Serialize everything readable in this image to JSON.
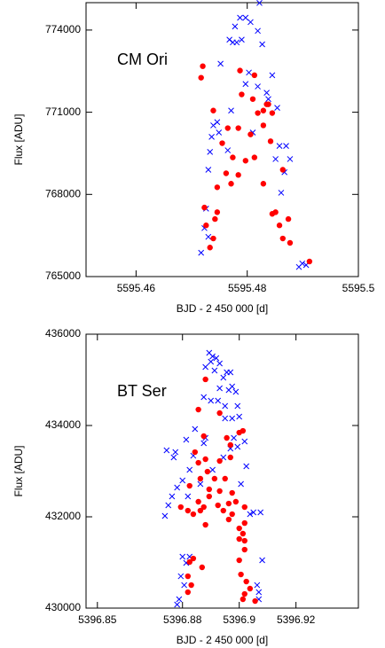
{
  "chart_data": [
    {
      "type": "scatter",
      "annotation": "CM Ori",
      "xlabel": "BJD - 2 450 000  [d]",
      "ylabel": "Flux [ADU]",
      "xlim": [
        5595.451,
        5595.5
      ],
      "xticks": [
        5595.46,
        5595.48,
        5595.5
      ],
      "ylim": [
        765000,
        775000
      ],
      "yticks": [
        765000,
        768000,
        771000,
        774000
      ],
      "series": [
        {
          "color": "#0000ff",
          "marker": "cross",
          "x": [
            5595.4822,
            5595.4787,
            5595.4797,
            5595.4806,
            5595.4778,
            5595.4819,
            5595.4768,
            5595.4774,
            5595.4781,
            5595.479,
            5595.4827,
            5595.4752,
            5595.4803,
            5595.4845,
            5595.4797,
            5595.4819,
            5595.4835,
            5595.4838,
            5595.4771,
            5595.4854,
            5595.4746,
            5595.4739,
            5595.4749,
            5595.4736,
            5595.481,
            5595.4765,
            5595.4858,
            5595.487,
            5595.4851,
            5595.4877,
            5595.4733,
            5595.473,
            5595.4867,
            5595.4861,
            5595.4726,
            5595.4723,
            5595.473,
            5595.4717,
            5595.4893,
            5595.4899,
            5595.4906
          ],
          "values": [
            774990,
            774450,
            774450,
            774290,
            774130,
            773970,
            773650,
            773550,
            773550,
            773650,
            773480,
            772770,
            772450,
            772350,
            772030,
            771940,
            771710,
            771480,
            771060,
            771160,
            770640,
            770520,
            770260,
            770100,
            770260,
            769610,
            769770,
            769770,
            769290,
            769290,
            769550,
            768900,
            768810,
            768060,
            767480,
            766770,
            766450,
            765870,
            765350,
            765480,
            765420
          ]
        },
        {
          "color": "#ff0000",
          "marker": "circle",
          "x": [
            5595.472,
            5595.4717,
            5595.4787,
            5595.4813,
            5595.479,
            5595.481,
            5595.4835,
            5595.4829,
            5595.4838,
            5595.4739,
            5595.4819,
            5595.4845,
            5595.4765,
            5595.4784,
            5595.4806,
            5595.4829,
            5595.4755,
            5595.4774,
            5595.4797,
            5595.4813,
            5595.4842,
            5595.4762,
            5595.4784,
            5595.4864,
            5595.4771,
            5595.4746,
            5595.4829,
            5595.4723,
            5595.4746,
            5595.4742,
            5595.4845,
            5595.4851,
            5595.4726,
            5595.4874,
            5595.4858,
            5595.4739,
            5595.4864,
            5595.4733,
            5595.4877,
            5595.4912
          ],
          "values": [
            772680,
            772260,
            772520,
            772350,
            771650,
            771480,
            771290,
            771060,
            771290,
            771060,
            770970,
            770970,
            770420,
            770420,
            770190,
            770520,
            769870,
            769350,
            769230,
            769350,
            769940,
            768770,
            768710,
            768900,
            768390,
            768260,
            768390,
            767520,
            767350,
            767100,
            767290,
            767350,
            766870,
            767100,
            766870,
            766390,
            766390,
            766060,
            766230,
            765550
          ]
        }
      ]
    },
    {
      "type": "scatter",
      "annotation": "BT Ser",
      "xlabel": "BJD - 2 450 000  [d]",
      "ylabel": "Flux [ADU]",
      "xlim": [
        5396.846,
        5396.942
      ],
      "xticks": [
        5396.85,
        5396.88,
        5396.9,
        5396.92
      ],
      "ylim": [
        430000,
        436000
      ],
      "yticks": [
        430000,
        432000,
        434000,
        436000
      ],
      "series": [
        {
          "color": "#0000ff",
          "marker": "cross",
          "x": [
            5396.8894,
            5396.8906,
            5396.89,
            5396.8919,
            5396.8931,
            5396.8881,
            5396.8913,
            5396.8956,
            5396.8944,
            5396.8969,
            5396.8975,
            5396.8931,
            5396.8963,
            5396.8988,
            5396.8875,
            5396.89,
            5396.8925,
            5396.895,
            5396.8994,
            5396.9,
            5396.895,
            5396.8975,
            5396.8844,
            5396.8813,
            5396.8881,
            5396.8981,
            5396.9019,
            5396.8994,
            5396.8969,
            5396.8744,
            5396.8775,
            5396.8875,
            5396.8838,
            5396.8769,
            5396.8944,
            5396.9025,
            5396.8825,
            5396.8906,
            5396.8863,
            5396.8763,
            5396.8781,
            5396.88,
            5396.8819,
            5396.875,
            5396.8738,
            5396.9006,
            5396.9038,
            5396.905,
            5396.9075,
            5396.8813,
            5396.88,
            5396.8825,
            5396.8794,
            5396.8806,
            5396.8788,
            5396.8781,
            5396.9081,
            5396.9063,
            5396.9069,
            5396.9069
          ],
          "values": [
            435592,
            435515,
            435398,
            435476,
            435359,
            435281,
            435204,
            435165,
            435048,
            435165,
            434854,
            434815,
            434777,
            434738,
            434621,
            434544,
            434544,
            434427,
            434427,
            434194,
            434155,
            434155,
            433922,
            433689,
            433728,
            433728,
            433650,
            433534,
            433495,
            433456,
            433417,
            433611,
            433339,
            433301,
            433301,
            433106,
            433029,
            433029,
            432718,
            432446,
            432640,
            432796,
            432446,
            432252,
            432019,
            432718,
            432058,
            432097,
            432097,
            430990,
            431126,
            431126,
            430698,
            430504,
            430194,
            430077,
            431048,
            430504,
            430349,
            430194
          ]
        },
        {
          "color": "#ff0000",
          "marker": "circle",
          "x": [
            5396.8881,
            5396.8856,
            5396.8931,
            5396.8875,
            5396.8956,
            5396.8969,
            5396.8844,
            5396.9013,
            5396.9,
            5396.8881,
            5396.8856,
            5396.8931,
            5396.8969,
            5396.8888,
            5396.8913,
            5396.895,
            5396.8863,
            5396.8825,
            5396.8894,
            5396.8931,
            5396.8975,
            5396.8894,
            5396.8856,
            5396.8963,
            5396.8988,
            5396.8875,
            5396.8925,
            5396.8794,
            5396.8819,
            5396.8863,
            5396.8838,
            5396.8944,
            5396.9019,
            5396.8975,
            5396.9,
            5396.8881,
            5396.8963,
            5396.9013,
            5396.9019,
            5396.9019,
            5396.9,
            5396.9019,
            5396.8838,
            5396.8825,
            5396.8869,
            5396.8819,
            5396.8831,
            5396.8819,
            5396.9,
            5396.9006,
            5396.9025,
            5396.9038,
            5396.9019,
            5396.9056,
            5396.9013
          ],
          "values": [
            435010,
            434349,
            434272,
            433767,
            433728,
            433573,
            433417,
            433883,
            433844,
            433262,
            433184,
            433223,
            433301,
            432990,
            432835,
            432835,
            432835,
            432679,
            432602,
            432563,
            432524,
            432446,
            432330,
            432291,
            432330,
            432213,
            432252,
            432213,
            432135,
            432135,
            432058,
            432135,
            432213,
            432058,
            431747,
            431825,
            431941,
            431631,
            431475,
            431281,
            431514,
            431863,
            431087,
            431009,
            430893,
            430698,
            430504,
            430349,
            431048,
            430737,
            430582,
            430427,
            430310,
            430155,
            430194
          ]
        }
      ]
    }
  ]
}
